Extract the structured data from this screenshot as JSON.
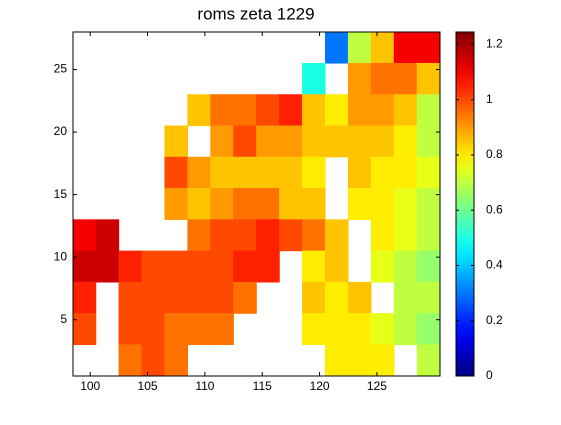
{
  "chart_data": {
    "type": "heatmap",
    "title": "roms zeta 1229",
    "colormap": "jet",
    "x": [
      99.5,
      101.5,
      103.5,
      105.5,
      107.5,
      109.5,
      111.5,
      113.5,
      115.5,
      117.5,
      119.5,
      121.5,
      123.5,
      125.5,
      127.5,
      129.5
    ],
    "y": [
      26.75,
      24.25,
      21.75,
      19.25,
      16.75,
      14.25,
      11.75,
      9.25,
      6.75,
      4.25,
      1.75
    ],
    "z": [
      [
        null,
        null,
        null,
        null,
        null,
        null,
        null,
        null,
        null,
        null,
        null,
        0.3,
        0.7,
        0.85,
        1.1,
        1.1
      ],
      [
        null,
        null,
        null,
        null,
        null,
        null,
        null,
        null,
        null,
        null,
        0.5,
        null,
        0.9,
        0.95,
        0.95,
        0.85
      ],
      [
        null,
        null,
        null,
        null,
        null,
        0.85,
        0.95,
        0.95,
        1.0,
        1.05,
        0.85,
        0.8,
        0.9,
        0.9,
        0.85,
        0.7
      ],
      [
        null,
        null,
        null,
        null,
        0.85,
        null,
        0.9,
        1.0,
        0.9,
        0.9,
        0.85,
        0.85,
        0.85,
        0.85,
        0.8,
        0.7
      ],
      [
        null,
        null,
        null,
        null,
        1.0,
        0.9,
        0.85,
        0.85,
        0.85,
        0.85,
        0.8,
        null,
        0.85,
        0.8,
        0.8,
        0.75
      ],
      [
        null,
        null,
        null,
        null,
        0.9,
        0.85,
        0.9,
        0.95,
        0.95,
        0.85,
        0.85,
        null,
        0.8,
        0.8,
        0.75,
        0.7
      ],
      [
        1.1,
        1.15,
        null,
        null,
        null,
        0.95,
        1.0,
        1.0,
        1.05,
        1.0,
        0.95,
        0.85,
        null,
        0.8,
        0.75,
        0.7
      ],
      [
        1.15,
        1.15,
        1.05,
        1.0,
        1.0,
        1.0,
        1.0,
        1.05,
        1.05,
        null,
        0.8,
        0.85,
        null,
        0.75,
        0.7,
        0.65
      ],
      [
        1.05,
        null,
        1.0,
        1.0,
        1.0,
        1.0,
        1.0,
        0.95,
        null,
        null,
        0.85,
        0.8,
        0.85,
        null,
        0.7,
        0.7
      ],
      [
        1.0,
        null,
        1.0,
        1.0,
        0.95,
        0.95,
        0.95,
        null,
        null,
        null,
        0.8,
        0.8,
        0.8,
        0.75,
        0.7,
        0.65
      ],
      [
        null,
        null,
        0.95,
        1.0,
        0.95,
        null,
        null,
        null,
        null,
        null,
        null,
        0.8,
        0.8,
        0.8,
        null,
        0.7
      ]
    ],
    "xlim": [
      98.5,
      130.5
    ],
    "xticks": [
      100,
      105,
      110,
      115,
      120,
      125
    ],
    "ylim": [
      0.5,
      28
    ],
    "yticks": [
      5,
      10,
      15,
      20,
      25
    ],
    "colorbar": {
      "lim": [
        0,
        1.245
      ],
      "ticks": [
        0,
        0.2,
        0.4,
        0.6,
        0.8,
        1,
        1.2
      ]
    }
  }
}
